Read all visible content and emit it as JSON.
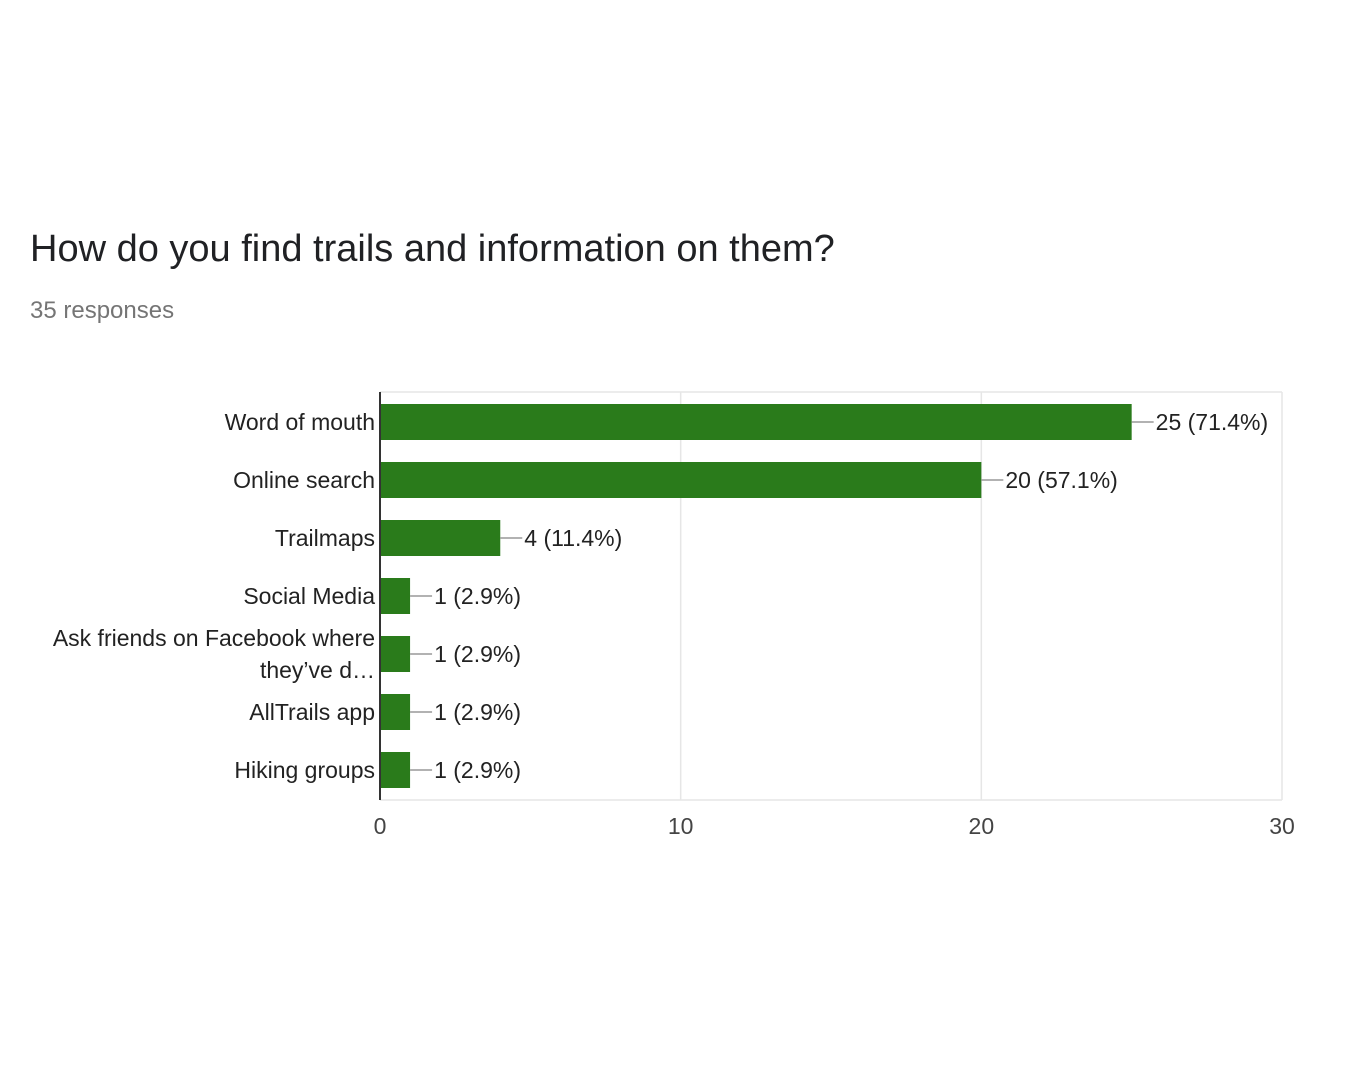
{
  "card": {
    "title": "How do you find trails and information on them?",
    "subtitle": "35 responses"
  },
  "chart_data": {
    "type": "bar",
    "orientation": "horizontal",
    "categories": [
      "Word of mouth",
      "Online search",
      "Trailmaps",
      "Social Media",
      "Ask friends on Facebook where they’ve d…",
      "AllTrails app",
      "Hiking groups"
    ],
    "category_label_lines": [
      [
        "Word of mouth"
      ],
      [
        "Online search"
      ],
      [
        "Trailmaps"
      ],
      [
        "Social Media"
      ],
      [
        "Ask friends on Facebook where",
        "they’ve d…"
      ],
      [
        "AllTrails app"
      ],
      [
        "Hiking groups"
      ]
    ],
    "values": [
      25,
      20,
      4,
      1,
      1,
      1,
      1
    ],
    "data_labels": [
      "25 (71.4%)",
      "20 (57.1%)",
      "4 (11.4%)",
      "1 (2.9%)",
      "1 (2.9%)",
      "1 (2.9%)",
      "1 (2.9%)"
    ],
    "xlim": [
      0,
      30
    ],
    "xticks": [
      0,
      10,
      20,
      30
    ],
    "xlabel": "",
    "ylabel": "",
    "grid": true,
    "colors": {
      "bar": "#2a7b1b",
      "grid": "#e6e6e6",
      "axis": "#333333",
      "leader": "#999999",
      "text": "#222222",
      "tick_text": "#444444"
    }
  }
}
